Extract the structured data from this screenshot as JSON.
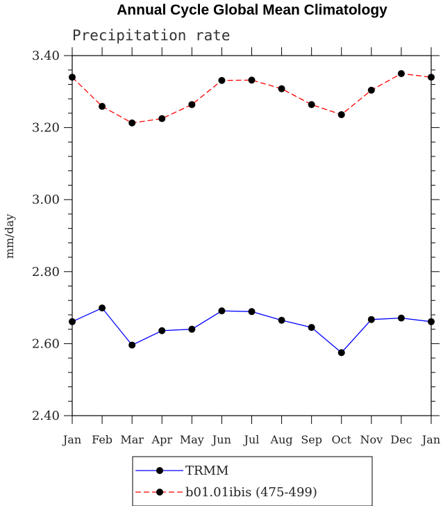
{
  "title": "Annual Cycle Global Mean Climatology",
  "chart_data": {
    "type": "line",
    "title": "Annual Cycle Global Mean Climatology",
    "subtitle": "Precipitation rate",
    "xlabel": "",
    "ylabel": "mm/day",
    "categories": [
      "Jan",
      "Feb",
      "Mar",
      "Apr",
      "May",
      "Jun",
      "Jul",
      "Aug",
      "Sep",
      "Oct",
      "Nov",
      "Dec",
      "Jan"
    ],
    "ylim": [
      2.4,
      3.4
    ],
    "yticks": [
      "2.40",
      "2.60",
      "2.80",
      "3.00",
      "3.20",
      "3.40"
    ],
    "series": [
      {
        "name": "TRMM",
        "color": "#0000ff",
        "line_style": "solid",
        "marker": "filled-circle",
        "values": [
          2.661,
          2.699,
          2.596,
          2.636,
          2.64,
          2.691,
          2.689,
          2.665,
          2.645,
          2.575,
          2.667,
          2.671,
          2.661
        ]
      },
      {
        "name": "b01.01ibis (475-499)",
        "color": "#ff0000",
        "line_style": "dashed",
        "marker": "filled-circle",
        "values": [
          3.34,
          3.259,
          3.213,
          3.225,
          3.264,
          3.331,
          3.332,
          3.308,
          3.264,
          3.236,
          3.304,
          3.35,
          3.34
        ]
      }
    ],
    "legend_position": "bottom-center",
    "grid": false
  }
}
